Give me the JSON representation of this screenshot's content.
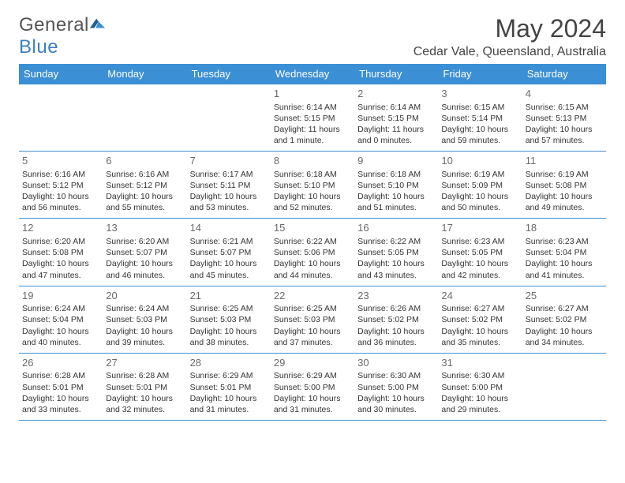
{
  "logo": {
    "text_gray": "General",
    "text_blue": "Blue"
  },
  "title": "May 2024",
  "location": "Cedar Vale, Queensland, Australia",
  "colors": {
    "header_bg": "#3b8fd4",
    "header_text": "#ffffff",
    "border": "#3b8fd4",
    "logo_gray": "#555555",
    "logo_blue": "#3b7fbf",
    "title_color": "#444444",
    "cell_text": "#333333",
    "daynum": "#6a6a6a",
    "bg": "#ffffff"
  },
  "day_headers": [
    "Sunday",
    "Monday",
    "Tuesday",
    "Wednesday",
    "Thursday",
    "Friday",
    "Saturday"
  ],
  "weeks": [
    [
      null,
      null,
      null,
      {
        "n": "1",
        "sr": "Sunrise: 6:14 AM",
        "ss": "Sunset: 5:15 PM",
        "dl": "Daylight: 11 hours and 1 minute."
      },
      {
        "n": "2",
        "sr": "Sunrise: 6:14 AM",
        "ss": "Sunset: 5:15 PM",
        "dl": "Daylight: 11 hours and 0 minutes."
      },
      {
        "n": "3",
        "sr": "Sunrise: 6:15 AM",
        "ss": "Sunset: 5:14 PM",
        "dl": "Daylight: 10 hours and 59 minutes."
      },
      {
        "n": "4",
        "sr": "Sunrise: 6:15 AM",
        "ss": "Sunset: 5:13 PM",
        "dl": "Daylight: 10 hours and 57 minutes."
      }
    ],
    [
      {
        "n": "5",
        "sr": "Sunrise: 6:16 AM",
        "ss": "Sunset: 5:12 PM",
        "dl": "Daylight: 10 hours and 56 minutes."
      },
      {
        "n": "6",
        "sr": "Sunrise: 6:16 AM",
        "ss": "Sunset: 5:12 PM",
        "dl": "Daylight: 10 hours and 55 minutes."
      },
      {
        "n": "7",
        "sr": "Sunrise: 6:17 AM",
        "ss": "Sunset: 5:11 PM",
        "dl": "Daylight: 10 hours and 53 minutes."
      },
      {
        "n": "8",
        "sr": "Sunrise: 6:18 AM",
        "ss": "Sunset: 5:10 PM",
        "dl": "Daylight: 10 hours and 52 minutes."
      },
      {
        "n": "9",
        "sr": "Sunrise: 6:18 AM",
        "ss": "Sunset: 5:10 PM",
        "dl": "Daylight: 10 hours and 51 minutes."
      },
      {
        "n": "10",
        "sr": "Sunrise: 6:19 AM",
        "ss": "Sunset: 5:09 PM",
        "dl": "Daylight: 10 hours and 50 minutes."
      },
      {
        "n": "11",
        "sr": "Sunrise: 6:19 AM",
        "ss": "Sunset: 5:08 PM",
        "dl": "Daylight: 10 hours and 49 minutes."
      }
    ],
    [
      {
        "n": "12",
        "sr": "Sunrise: 6:20 AM",
        "ss": "Sunset: 5:08 PM",
        "dl": "Daylight: 10 hours and 47 minutes."
      },
      {
        "n": "13",
        "sr": "Sunrise: 6:20 AM",
        "ss": "Sunset: 5:07 PM",
        "dl": "Daylight: 10 hours and 46 minutes."
      },
      {
        "n": "14",
        "sr": "Sunrise: 6:21 AM",
        "ss": "Sunset: 5:07 PM",
        "dl": "Daylight: 10 hours and 45 minutes."
      },
      {
        "n": "15",
        "sr": "Sunrise: 6:22 AM",
        "ss": "Sunset: 5:06 PM",
        "dl": "Daylight: 10 hours and 44 minutes."
      },
      {
        "n": "16",
        "sr": "Sunrise: 6:22 AM",
        "ss": "Sunset: 5:05 PM",
        "dl": "Daylight: 10 hours and 43 minutes."
      },
      {
        "n": "17",
        "sr": "Sunrise: 6:23 AM",
        "ss": "Sunset: 5:05 PM",
        "dl": "Daylight: 10 hours and 42 minutes."
      },
      {
        "n": "18",
        "sr": "Sunrise: 6:23 AM",
        "ss": "Sunset: 5:04 PM",
        "dl": "Daylight: 10 hours and 41 minutes."
      }
    ],
    [
      {
        "n": "19",
        "sr": "Sunrise: 6:24 AM",
        "ss": "Sunset: 5:04 PM",
        "dl": "Daylight: 10 hours and 40 minutes."
      },
      {
        "n": "20",
        "sr": "Sunrise: 6:24 AM",
        "ss": "Sunset: 5:03 PM",
        "dl": "Daylight: 10 hours and 39 minutes."
      },
      {
        "n": "21",
        "sr": "Sunrise: 6:25 AM",
        "ss": "Sunset: 5:03 PM",
        "dl": "Daylight: 10 hours and 38 minutes."
      },
      {
        "n": "22",
        "sr": "Sunrise: 6:25 AM",
        "ss": "Sunset: 5:03 PM",
        "dl": "Daylight: 10 hours and 37 minutes."
      },
      {
        "n": "23",
        "sr": "Sunrise: 6:26 AM",
        "ss": "Sunset: 5:02 PM",
        "dl": "Daylight: 10 hours and 36 minutes."
      },
      {
        "n": "24",
        "sr": "Sunrise: 6:27 AM",
        "ss": "Sunset: 5:02 PM",
        "dl": "Daylight: 10 hours and 35 minutes."
      },
      {
        "n": "25",
        "sr": "Sunrise: 6:27 AM",
        "ss": "Sunset: 5:02 PM",
        "dl": "Daylight: 10 hours and 34 minutes."
      }
    ],
    [
      {
        "n": "26",
        "sr": "Sunrise: 6:28 AM",
        "ss": "Sunset: 5:01 PM",
        "dl": "Daylight: 10 hours and 33 minutes."
      },
      {
        "n": "27",
        "sr": "Sunrise: 6:28 AM",
        "ss": "Sunset: 5:01 PM",
        "dl": "Daylight: 10 hours and 32 minutes."
      },
      {
        "n": "28",
        "sr": "Sunrise: 6:29 AM",
        "ss": "Sunset: 5:01 PM",
        "dl": "Daylight: 10 hours and 31 minutes."
      },
      {
        "n": "29",
        "sr": "Sunrise: 6:29 AM",
        "ss": "Sunset: 5:00 PM",
        "dl": "Daylight: 10 hours and 31 minutes."
      },
      {
        "n": "30",
        "sr": "Sunrise: 6:30 AM",
        "ss": "Sunset: 5:00 PM",
        "dl": "Daylight: 10 hours and 30 minutes."
      },
      {
        "n": "31",
        "sr": "Sunrise: 6:30 AM",
        "ss": "Sunset: 5:00 PM",
        "dl": "Daylight: 10 hours and 29 minutes."
      },
      null
    ]
  ]
}
